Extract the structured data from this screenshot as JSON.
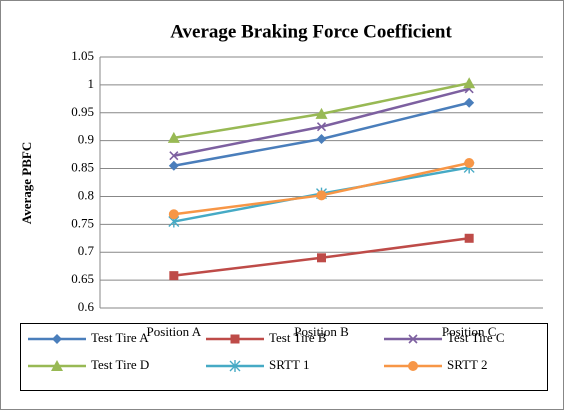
{
  "chart_data": {
    "type": "line",
    "title": "Average Braking Force Coefficient",
    "y_label": "Average PBFC",
    "categories": [
      "Position A",
      "Position B",
      "Position C"
    ],
    "series": [
      {
        "name": "Test Tire A",
        "color": "#4a7ebb",
        "marker": "diamond",
        "values": [
          0.855,
          0.903,
          0.968
        ]
      },
      {
        "name": "Test Tire B",
        "color": "#be4b48",
        "marker": "square",
        "values": [
          0.658,
          0.69,
          0.725
        ]
      },
      {
        "name": "Test Tire C",
        "color": "#7d60a0",
        "marker": "x",
        "values": [
          0.873,
          0.925,
          0.993
        ]
      },
      {
        "name": "Test Tire D",
        "color": "#98b954",
        "marker": "triangle",
        "values": [
          0.905,
          0.948,
          1.003
        ]
      },
      {
        "name": "SRTT 1",
        "color": "#46aac5",
        "marker": "star",
        "values": [
          0.755,
          0.805,
          0.852
        ]
      },
      {
        "name": "SRTT 2",
        "color": "#f79646",
        "marker": "circle",
        "values": [
          0.768,
          0.802,
          0.86
        ]
      }
    ],
    "ylim": [
      0.6,
      1.05
    ],
    "yticks": [
      0.6,
      0.65,
      0.7,
      0.75,
      0.8,
      0.85,
      0.9,
      0.95,
      1,
      1.05
    ],
    "grid": true,
    "legend": "bottom"
  }
}
